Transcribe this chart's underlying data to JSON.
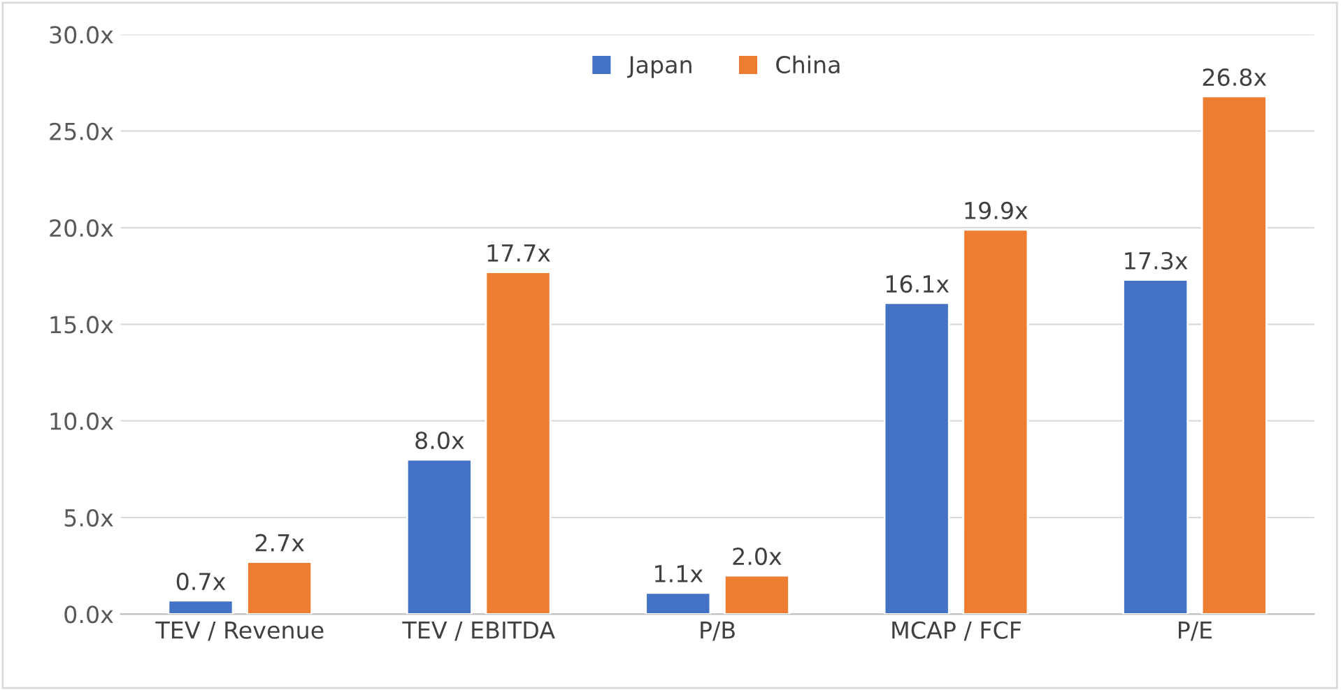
{
  "chart_data": {
    "type": "bar",
    "categories": [
      "TEV / Revenue",
      "TEV / EBITDA",
      "P/B",
      "MCAP / FCF",
      "P/E"
    ],
    "series": [
      {
        "name": "Japan",
        "color": "#4472c4",
        "values": [
          0.7,
          8.0,
          1.1,
          16.1,
          17.3
        ],
        "value_labels": [
          "0.7x",
          "8.0x",
          "1.1x",
          "16.1x",
          "17.3x"
        ]
      },
      {
        "name": "China",
        "color": "#ed7d31",
        "values": [
          2.7,
          17.7,
          2.0,
          19.9,
          26.8
        ],
        "value_labels": [
          "2.7x",
          "17.7x",
          "2.0x",
          "19.9x",
          "26.8x"
        ]
      }
    ],
    "ylim": [
      0,
      30
    ],
    "yticks": [
      {
        "value": 0,
        "label": "0.0x"
      },
      {
        "value": 5,
        "label": "5.0x"
      },
      {
        "value": 10,
        "label": "10.0x"
      },
      {
        "value": 15,
        "label": "15.0x"
      },
      {
        "value": 20,
        "label": "20.0x"
      },
      {
        "value": 25,
        "label": "25.0x"
      },
      {
        "value": 30,
        "label": "30.0x"
      }
    ],
    "grid": "y",
    "legend": "top"
  }
}
